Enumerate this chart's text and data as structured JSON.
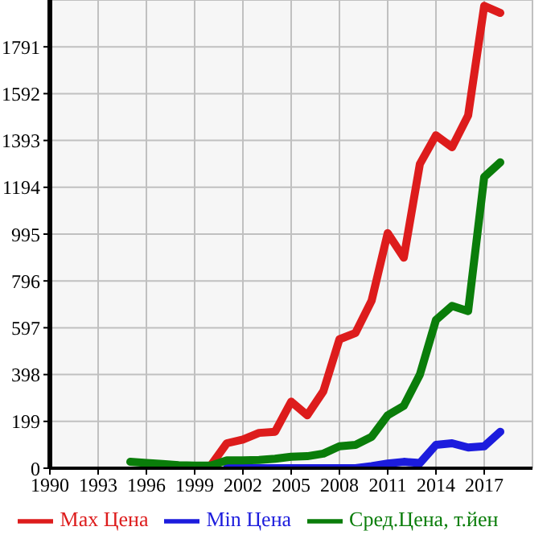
{
  "chart_data": {
    "type": "line",
    "x": [
      1995,
      1996,
      1997,
      1998,
      1999,
      2000,
      2001,
      2002,
      2003,
      2004,
      2005,
      2006,
      2007,
      2008,
      2009,
      2010,
      2011,
      2012,
      2013,
      2014,
      2015,
      2016,
      2017,
      2018
    ],
    "series": [
      {
        "name": "Max Цена",
        "color": "#dd1c1c",
        "values": [
          null,
          null,
          null,
          null,
          null,
          11,
          106,
          122,
          150,
          155,
          283,
          225,
          327,
          548,
          575,
          712,
          999,
          895,
          1293,
          1415,
          1364,
          1499,
          1965,
          1935
        ]
      },
      {
        "name": "Min Цена",
        "color": "#1c1cdd",
        "values": [
          null,
          null,
          null,
          null,
          null,
          null,
          0,
          0,
          0,
          0,
          0,
          0,
          0,
          0,
          0,
          9,
          20,
          27,
          22,
          99,
          106,
          88,
          93,
          155
        ]
      },
      {
        "name": "Сред.Цена, т.йен",
        "color": "#0a7d0a",
        "values": [
          27,
          22,
          18,
          13,
          11,
          11,
          33,
          33,
          35,
          40,
          49,
          51,
          62,
          93,
          99,
          133,
          225,
          265,
          398,
          630,
          690,
          668,
          1238,
          1300
        ]
      }
    ],
    "xlim": [
      1990,
      2020
    ],
    "xticks": [
      1990,
      1993,
      1996,
      1999,
      2002,
      2005,
      2008,
      2011,
      2014,
      2017
    ],
    "ylim": [
      0,
      1990
    ],
    "yticks": [
      0,
      199,
      398,
      597,
      796,
      995,
      1194,
      1393,
      1592,
      1791
    ],
    "grid": true,
    "legend": "bottom",
    "marker": "none",
    "line_style": "solid"
  }
}
